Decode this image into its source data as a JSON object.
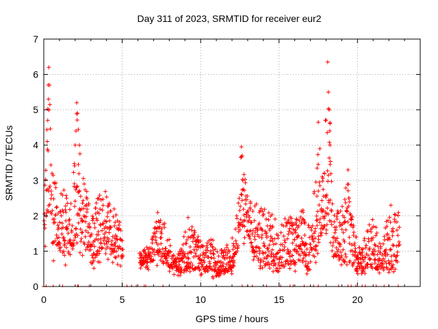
{
  "chart_data": {
    "type": "scatter",
    "title": "Day 311 of 2023, SRMTID for receiver eur2",
    "xlabel": "GPS time / hours",
    "ylabel": "SRMTID / TECUs",
    "xlim": [
      0,
      24
    ],
    "ylim": [
      0,
      7
    ],
    "x_ticks": [
      0,
      5,
      10,
      15,
      20
    ],
    "y_ticks": [
      0,
      1,
      2,
      3,
      4,
      5,
      6,
      7
    ],
    "grid": true,
    "marker": "+",
    "color": "#ff0000",
    "envelope": [
      [
        0.0,
        0.8,
        2.0
      ],
      [
        0.2,
        1.5,
        4.5
      ],
      [
        0.35,
        2.5,
        6.2
      ],
      [
        0.6,
        1.0,
        3.5
      ],
      [
        0.9,
        1.2,
        2.6
      ],
      [
        1.2,
        0.8,
        2.8
      ],
      [
        1.5,
        0.9,
        2.6
      ],
      [
        1.8,
        1.0,
        2.4
      ],
      [
        2.1,
        1.5,
        5.2
      ],
      [
        2.4,
        1.2,
        3.4
      ],
      [
        2.7,
        1.0,
        2.9
      ],
      [
        3.0,
        0.6,
        2.0
      ],
      [
        3.3,
        0.8,
        2.5
      ],
      [
        3.6,
        1.0,
        2.7
      ],
      [
        3.9,
        1.2,
        2.8
      ],
      [
        4.2,
        1.0,
        2.6
      ],
      [
        4.6,
        0.8,
        2.2
      ],
      [
        5.0,
        0.8,
        1.9
      ],
      [
        6.2,
        0.6,
        1.0
      ],
      [
        6.8,
        0.7,
        1.2
      ],
      [
        7.3,
        0.8,
        2.2
      ],
      [
        7.7,
        0.6,
        1.8
      ],
      [
        8.2,
        0.5,
        1.0
      ],
      [
        8.7,
        0.4,
        1.0
      ],
      [
        9.2,
        0.4,
        1.9
      ],
      [
        9.7,
        0.5,
        1.5
      ],
      [
        10.2,
        0.4,
        1.2
      ],
      [
        10.7,
        0.3,
        1.4
      ],
      [
        11.2,
        0.3,
        1.0
      ],
      [
        11.7,
        0.4,
        1.2
      ],
      [
        12.2,
        0.6,
        1.5
      ],
      [
        12.6,
        1.8,
        3.9
      ],
      [
        13.0,
        1.5,
        2.5
      ],
      [
        13.5,
        0.8,
        2.4
      ],
      [
        14.0,
        0.6,
        2.2
      ],
      [
        14.5,
        0.5,
        2.2
      ],
      [
        15.0,
        0.5,
        1.8
      ],
      [
        15.5,
        0.6,
        2.2
      ],
      [
        16.0,
        0.6,
        1.9
      ],
      [
        16.5,
        0.6,
        2.2
      ],
      [
        17.0,
        0.4,
        1.6
      ],
      [
        17.5,
        1.2,
        3.9
      ],
      [
        17.8,
        1.5,
        3.5
      ],
      [
        18.1,
        1.5,
        6.3
      ],
      [
        18.5,
        0.8,
        2.0
      ],
      [
        19.0,
        0.6,
        2.3
      ],
      [
        19.4,
        0.8,
        3.3
      ],
      [
        19.8,
        0.5,
        1.6
      ],
      [
        20.2,
        0.3,
        1.0
      ],
      [
        20.6,
        0.6,
        1.6
      ],
      [
        21.0,
        0.5,
        2.1
      ],
      [
        21.5,
        0.5,
        1.2
      ],
      [
        22.0,
        0.4,
        2.4
      ],
      [
        22.5,
        0.7,
        2.1
      ],
      [
        22.7,
        0.8,
        2.2
      ]
    ],
    "peaks": [
      [
        0.32,
        6.2
      ],
      [
        0.28,
        5.7
      ],
      [
        0.3,
        5.3
      ],
      [
        0.25,
        4.7
      ],
      [
        0.22,
        4.1
      ],
      [
        2.1,
        5.2
      ],
      [
        2.15,
        4.9
      ],
      [
        2.05,
        4.4
      ],
      [
        2.0,
        4.0
      ],
      [
        12.6,
        3.95
      ],
      [
        12.65,
        3.7
      ],
      [
        17.5,
        4.65
      ],
      [
        17.6,
        3.9
      ],
      [
        18.1,
        6.35
      ],
      [
        18.15,
        5.5
      ],
      [
        18.2,
        5.0
      ],
      [
        18.25,
        4.0
      ],
      [
        19.4,
        3.3
      ],
      [
        9.2,
        1.95
      ]
    ],
    "zero_points": [
      0.0,
      0.15,
      0.6,
      1.2,
      2.15,
      2.2,
      2.9,
      5.0,
      5.3,
      5.6,
      5.9,
      6.4,
      6.5,
      7.6,
      12.65,
      13.0,
      13.3,
      14.2,
      15.1,
      15.7,
      15.9,
      16.6,
      17.2,
      17.5,
      18.8,
      19.4,
      19.6,
      19.9,
      20.3,
      20.5,
      21.2,
      21.7,
      22.0,
      22.6
    ]
  }
}
